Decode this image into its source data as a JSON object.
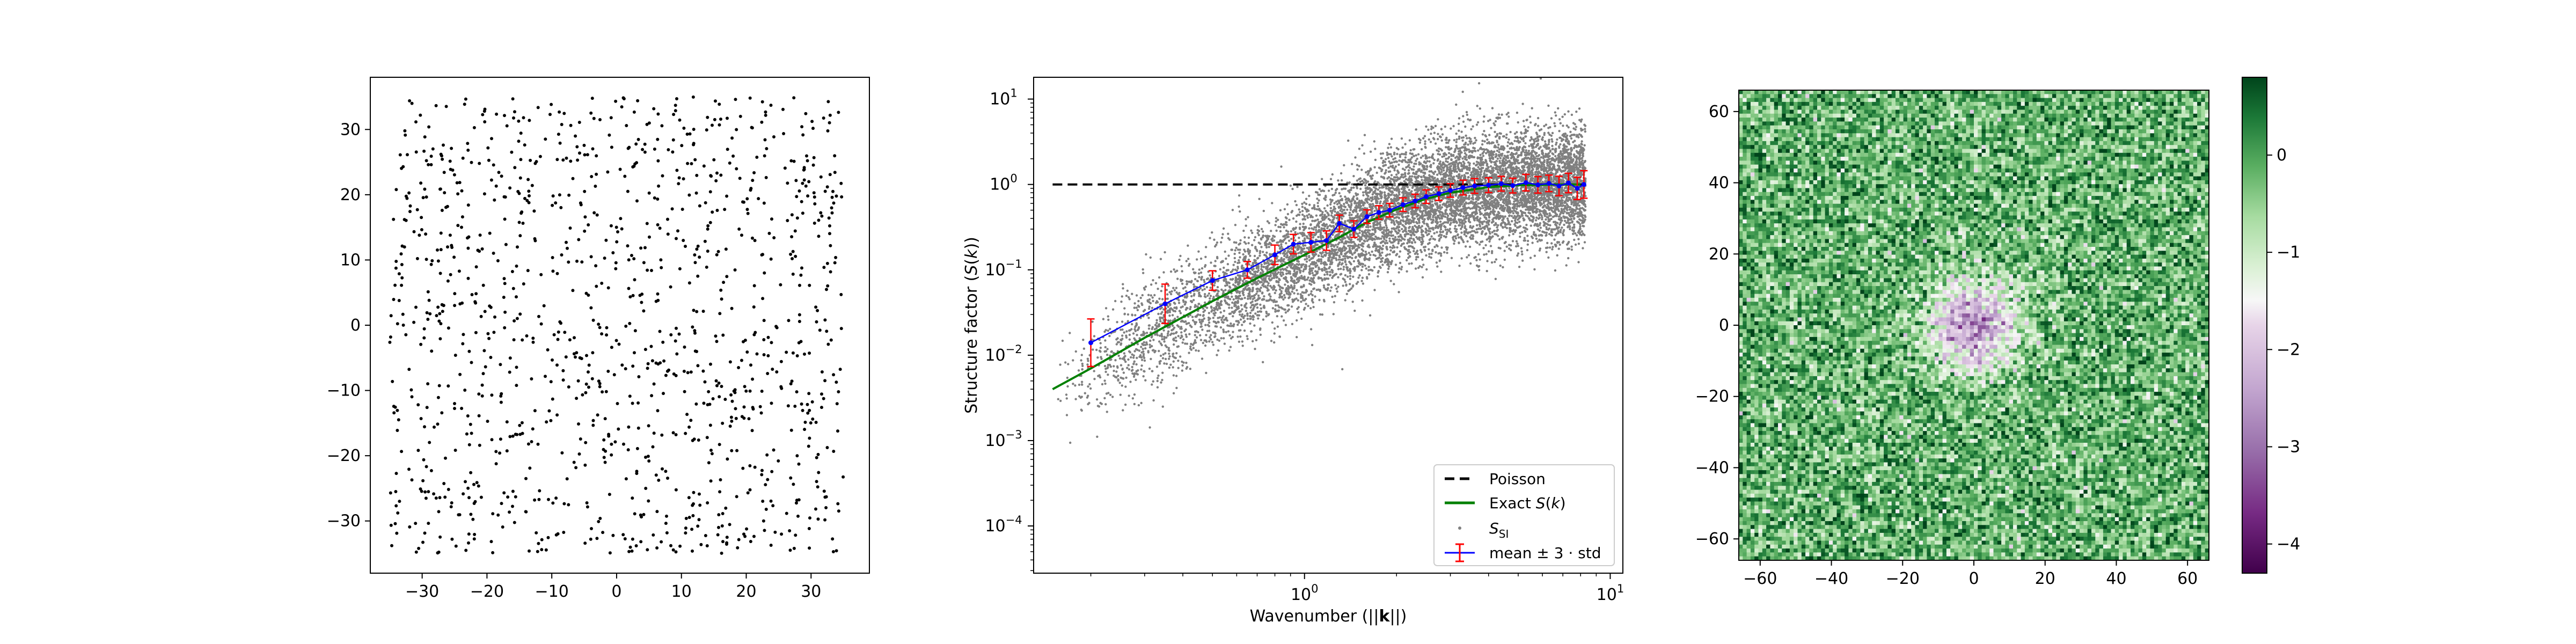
{
  "chart_data": [
    {
      "type": "scatter",
      "panel": "point pattern",
      "xlim": [
        -38,
        39
      ],
      "ylim": [
        -38,
        38
      ],
      "xticks": [
        -30,
        -20,
        -10,
        0,
        10,
        20,
        30
      ],
      "yticks": [
        -30,
        -20,
        -10,
        0,
        10,
        20,
        30
      ],
      "xticklabels": [
        "−30",
        "−20",
        "−10",
        "0",
        "10",
        "20",
        "30"
      ],
      "yticklabels": [
        "−30",
        "−20",
        "−10",
        "0",
        "10",
        "20",
        "30"
      ],
      "points": {
        "count": 1200,
        "x_range": [
          -35,
          35
        ],
        "y_range": [
          -35,
          35
        ],
        "color": "#000000"
      }
    },
    {
      "type": "line",
      "panel": "structure factor",
      "xscale": "log",
      "yscale": "log",
      "xlim": [
        0.13,
        11
      ],
      "ylim": [
        2.8e-05,
        18
      ],
      "xlabel": "Wavenumber (||k||)",
      "ylabel": "Structure factor (S(k))",
      "xticks": [
        1,
        10
      ],
      "yticks": [
        0.0001,
        0.001,
        0.01,
        0.1,
        1,
        10
      ],
      "xticklabels": [
        {
          "base": "10",
          "exp": "0"
        },
        {
          "base": "10",
          "exp": "1"
        }
      ],
      "yticklabels": [
        {
          "base": "10",
          "exp": "−4"
        },
        {
          "base": "10",
          "exp": "−3"
        },
        {
          "base": "10",
          "exp": "−2"
        },
        {
          "base": "10",
          "exp": "−1"
        },
        {
          "base": "10",
          "exp": "0"
        },
        {
          "base": "10",
          "exp": "1"
        }
      ],
      "legend_position": "lower-right",
      "legend": [
        {
          "label": "Poisson",
          "color": "#000000",
          "style": "dashed"
        },
        {
          "label": "Exact S(k)",
          "color": "#008000",
          "style": "solid"
        },
        {
          "label": "S_SI",
          "color": "#808080",
          "style": "marker"
        },
        {
          "label": "mean ± 3 · std",
          "color": "#0000ff",
          "err_color": "#ff0000",
          "style": "errorbar"
        }
      ],
      "series": [
        {
          "name": "Poisson",
          "x": [
            0.15,
            8.3
          ],
          "y": [
            1,
            1
          ]
        },
        {
          "name": "Exact S(k)",
          "x": [
            0.15,
            0.2,
            0.3,
            0.5,
            0.7,
            1.0,
            1.3,
            1.6,
            2.0,
            2.5,
            3.0,
            4.0,
            5.0,
            6.0,
            7.0,
            8.0
          ],
          "y": [
            0.004,
            0.007,
            0.016,
            0.043,
            0.08,
            0.15,
            0.24,
            0.36,
            0.51,
            0.68,
            0.8,
            0.93,
            0.98,
            0.99,
            1.0,
            1.0
          ]
        },
        {
          "name": "mean ± 3 · std",
          "x": [
            0.2,
            0.35,
            0.5,
            0.65,
            0.8,
            0.92,
            1.05,
            1.18,
            1.3,
            1.45,
            1.6,
            1.75,
            1.9,
            2.1,
            2.3,
            2.5,
            2.75,
            3.0,
            3.3,
            3.6,
            4.0,
            4.4,
            4.8,
            5.3,
            5.8,
            6.3,
            6.8,
            7.3,
            7.8,
            8.2
          ],
          "y": [
            0.014,
            0.04,
            0.075,
            0.1,
            0.15,
            0.2,
            0.21,
            0.22,
            0.35,
            0.3,
            0.42,
            0.47,
            0.5,
            0.58,
            0.64,
            0.72,
            0.78,
            0.85,
            0.92,
            0.96,
            0.98,
            1.02,
            0.97,
            1.05,
            0.99,
            1.03,
            0.96,
            1.04,
            0.9,
            1.0
          ],
          "err_factor": [
            1.9,
            1.7,
            1.3,
            1.25,
            1.3,
            1.3,
            1.3,
            1.3,
            1.25,
            1.25,
            1.2,
            1.2,
            1.2,
            1.2,
            1.2,
            1.2,
            1.2,
            1.2,
            1.22,
            1.22,
            1.22,
            1.22,
            1.22,
            1.25,
            1.25,
            1.25,
            1.3,
            1.3,
            1.35,
            1.45
          ]
        }
      ],
      "scatter_cloud": {
        "name": "S_SI",
        "count": 9000,
        "x_range": [
          0.15,
          8.3
        ],
        "color": "#808080"
      }
    },
    {
      "type": "heatmap",
      "panel": "log structure factor map",
      "xlim": [
        -66,
        66
      ],
      "ylim": [
        -66,
        66
      ],
      "xticks": [
        -60,
        -40,
        -20,
        0,
        20,
        40,
        60
      ],
      "yticks": [
        -60,
        -40,
        -20,
        0,
        20,
        40,
        60
      ],
      "xticklabels": [
        "−60",
        "−40",
        "−20",
        "0",
        "20",
        "40",
        "60"
      ],
      "yticklabels": [
        "−60",
        "−40",
        "−20",
        "0",
        "20",
        "40",
        "60"
      ],
      "grid_cells": 120,
      "colormap": "PRGn",
      "vmin": -4.3,
      "vmax": 0.8,
      "colorbar_ticks": [
        -4,
        -3,
        -2,
        -1,
        0
      ],
      "colorbar_ticklabels": [
        "−4",
        "−3",
        "−2",
        "−1",
        "0"
      ]
    }
  ]
}
